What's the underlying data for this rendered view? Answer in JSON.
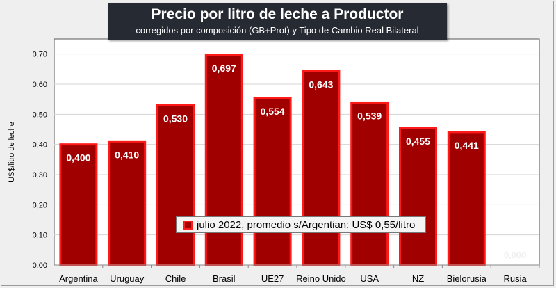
{
  "chart_data": {
    "type": "bar",
    "title": "Precio por litro de leche a Productor",
    "subtitle": "-  corregidos por composición (GB+Prot) y Tipo de Cambio Real Bilateral -",
    "xlabel": "",
    "ylabel": "US$/litro de leche",
    "ylim": [
      0,
      0.75
    ],
    "yticks": [
      0,
      0.1,
      0.2,
      0.3,
      0.4,
      0.5,
      0.6,
      0.7
    ],
    "ytick_labels": [
      "0,00",
      "0,10",
      "0,20",
      "0,30",
      "0,40",
      "0,50",
      "0,60",
      "0,70"
    ],
    "categories": [
      "Argentina",
      "Uruguay",
      "Chile",
      "Brasil",
      "UE27",
      "Reino Unido",
      "USA",
      "NZ",
      "Bielorusia",
      "Rusia"
    ],
    "values": [
      0.4,
      0.41,
      0.53,
      0.697,
      0.554,
      0.643,
      0.539,
      0.455,
      0.441,
      0.0
    ],
    "data_labels": [
      "0,400",
      "0,410",
      "0,530",
      "0,697",
      "0,554",
      "0,643",
      "0,539",
      "0,455",
      "0,441",
      "0,000"
    ],
    "grid": true,
    "legend": {
      "position": "bottom-center",
      "entries": [
        "julio 2022, promedio s/Argentian: US$ 0,55/litro"
      ]
    },
    "colors": {
      "bar_fill": "#a00000",
      "bar_edge": "#ff1a1a",
      "title_bg": "#262a33"
    }
  }
}
